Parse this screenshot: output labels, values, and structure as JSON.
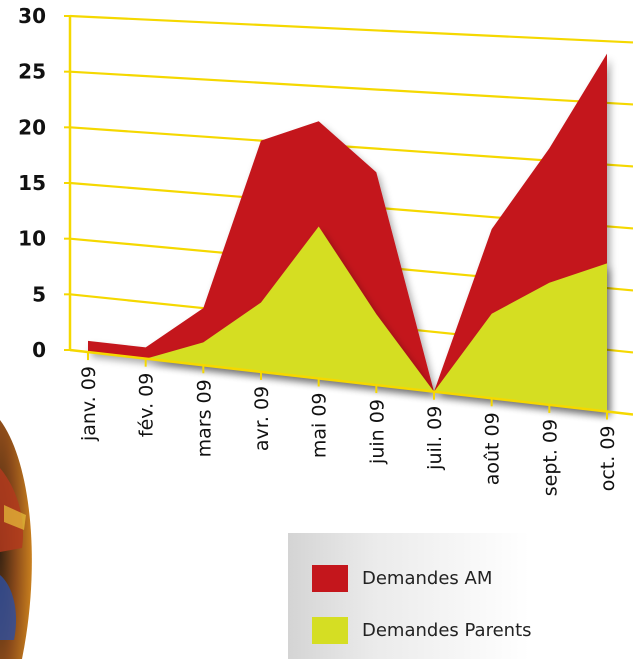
{
  "chart_data": {
    "type": "area",
    "categories": [
      "janv. 09",
      "fév. 09",
      "mars 09",
      "avr. 09",
      "mai 09",
      "juin 09",
      "juil. 09",
      "août 09",
      "sept. 09",
      "oct. 09"
    ],
    "series": [
      {
        "name": "Demandes AM",
        "values": [
          1,
          1,
          5,
          20,
          22,
          18,
          0,
          14,
          21,
          29
        ],
        "color": "#c4161c"
      },
      {
        "name": "Demandes Parents",
        "values": [
          0,
          0,
          2,
          6,
          13,
          6,
          0,
          7,
          10,
          12
        ],
        "color": "#d5de23"
      }
    ],
    "title": "",
    "xlabel": "",
    "ylabel": "",
    "yticks": [
      "0",
      "5",
      "10",
      "15",
      "20",
      "25",
      "30"
    ],
    "ylim": [
      0,
      30
    ],
    "grid": true,
    "axis_color": "#f5d800",
    "legend_position": "bottom-right"
  },
  "legend": {
    "items": [
      {
        "label": "Demandes AM",
        "color": "#c4161c"
      },
      {
        "label": "Demandes Parents",
        "color": "#d5de23"
      }
    ]
  }
}
